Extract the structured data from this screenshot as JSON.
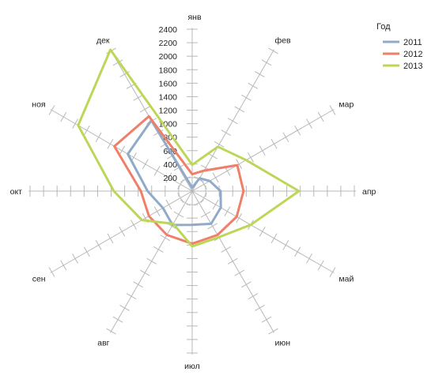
{
  "chart_data": {
    "type": "radar",
    "title": "",
    "categories": [
      "янв",
      "фев",
      "мар",
      "апр",
      "май",
      "июн",
      "июл",
      "авг",
      "сен",
      "окт",
      "ноя",
      "дек"
    ],
    "rlim": [
      0,
      2400
    ],
    "ticks": [
      200,
      400,
      600,
      800,
      1000,
      1200,
      1400,
      1600,
      1800,
      2000,
      2200,
      2400
    ],
    "tick_labels": [
      "200",
      "400",
      "600",
      "800",
      "1000",
      "1200",
      "1400",
      "1600",
      "1800",
      "2000",
      "2200",
      "2400"
    ],
    "legend_title": "Год",
    "legend_position": "top-right",
    "grid": true,
    "series": [
      {
        "name": "2011",
        "color": "#8fabc9",
        "values": [
          50,
          220,
          300,
          420,
          490,
          560,
          500,
          580,
          500,
          660,
          1100,
          1210
        ]
      },
      {
        "name": "2012",
        "color": "#ef7f68",
        "values": [
          250,
          350,
          770,
          760,
          760,
          750,
          780,
          750,
          740,
          760,
          1330,
          1280
        ]
      },
      {
        "name": "2013",
        "color": "#bcd758",
        "values": [
          390,
          760,
          920,
          1580,
          1000,
          790,
          820,
          560,
          860,
          1160,
          1950,
          2420
        ]
      }
    ]
  }
}
